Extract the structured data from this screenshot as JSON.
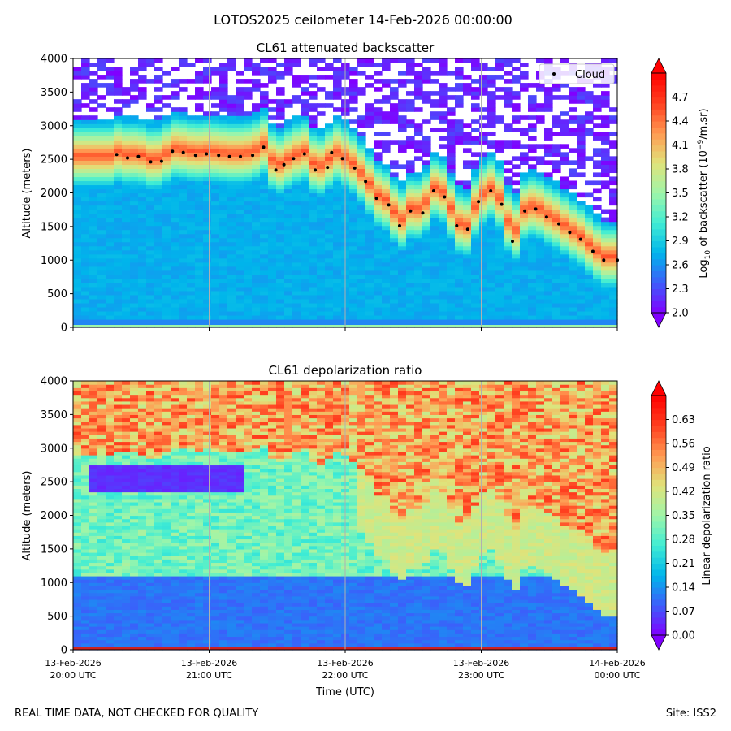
{
  "figure": {
    "suptitle": "LOTOS2025 ceilometer 14-Feb-2026 00:00:00",
    "footer_left": "REAL TIME DATA, NOT CHECKED FOR QUALITY",
    "footer_right": "Site: ISS2"
  },
  "colors": {
    "rainbow": [
      "#8000ff",
      "#3d5dfb",
      "#00b5eb",
      "#40edd4",
      "#9ef5a9",
      "#e0e37a",
      "#ff9a52",
      "#ff3f1f",
      "#ff0000"
    ],
    "cloud_marker": "#000000",
    "surface_band": "#cc2222",
    "grid": "#b0b0b0"
  },
  "chart_data": [
    {
      "type": "heatmap",
      "title": "CL61 attenuated backscatter",
      "xlabel": "",
      "ylabel": "Altitude (meters)",
      "ylim": [
        0,
        4000
      ],
      "yticks": [
        "0",
        "500",
        "1000",
        "1500",
        "2000",
        "2500",
        "3000",
        "3500",
        "4000"
      ],
      "x_hours_range": [
        0,
        4
      ],
      "grid_x_hours": [
        1,
        2,
        3
      ],
      "colorbar": {
        "label_prefix": "Log",
        "label_sub": "10",
        "label_mid": " of backscatter (10",
        "label_sup": "−9",
        "label_suffix": "/m.sr)",
        "vmin": 2.0,
        "vmax": 5.0,
        "ticks": [
          "2.0",
          "2.3",
          "2.6",
          "2.9",
          "3.2",
          "3.5",
          "3.8",
          "4.1",
          "4.4",
          "4.7"
        ],
        "tick_values": [
          2.0,
          2.3,
          2.6,
          2.9,
          3.2,
          3.5,
          3.8,
          4.1,
          4.4,
          4.7
        ]
      },
      "legend": {
        "label": "Cloud",
        "position": "top-right"
      },
      "cloud_base_hours": [
        0.32,
        0.4,
        0.48,
        0.57,
        0.65,
        0.73,
        0.81,
        0.9,
        0.98,
        1.07,
        1.15,
        1.23,
        1.32,
        1.4,
        1.49,
        1.55,
        1.62,
        1.7,
        1.78,
        1.87,
        1.9,
        1.98,
        2.07,
        2.15,
        2.23,
        2.32,
        2.4,
        2.48,
        2.57,
        2.65,
        2.73,
        2.82,
        2.9,
        2.98,
        3.07,
        3.15,
        3.23,
        3.32,
        3.4,
        3.48,
        3.57,
        3.65,
        3.73,
        3.82,
        3.9,
        4.0
      ],
      "cloud_base_m": [
        2570,
        2520,
        2540,
        2460,
        2470,
        2620,
        2600,
        2560,
        2580,
        2560,
        2540,
        2540,
        2560,
        2680,
        2340,
        2420,
        2510,
        2580,
        2340,
        2380,
        2600,
        2510,
        2370,
        2170,
        1920,
        1820,
        1510,
        1730,
        1700,
        2030,
        1940,
        1510,
        1460,
        1870,
        2030,
        1830,
        1280,
        1730,
        1760,
        1640,
        1540,
        1410,
        1310,
        1130,
        1000,
        1000
      ]
    },
    {
      "type": "heatmap",
      "title": "CL61 depolarization ratio",
      "xlabel": "Time (UTC)",
      "ylabel": "Altitude (meters)",
      "ylim": [
        0,
        4000
      ],
      "yticks": [
        "0",
        "500",
        "1000",
        "1500",
        "2000",
        "2500",
        "3000",
        "3500",
        "4000"
      ],
      "x_hours_range": [
        0,
        4
      ],
      "grid_x_hours": [
        1,
        2,
        3
      ],
      "xticks": [
        {
          "hour": 0,
          "line1": "13-Feb-2026",
          "line2": "20:00 UTC"
        },
        {
          "hour": 1,
          "line1": "13-Feb-2026",
          "line2": "21:00 UTC"
        },
        {
          "hour": 2,
          "line1": "13-Feb-2026",
          "line2": "22:00 UTC"
        },
        {
          "hour": 3,
          "line1": "13-Feb-2026",
          "line2": "23:00 UTC"
        },
        {
          "hour": 4,
          "line1": "14-Feb-2026",
          "line2": "00:00 UTC"
        }
      ],
      "colorbar": {
        "label": "Linear depolarization ratio",
        "vmin": 0.0,
        "vmax": 0.7,
        "ticks": [
          "0.00",
          "0.07",
          "0.14",
          "0.21",
          "0.28",
          "0.35",
          "0.42",
          "0.49",
          "0.56",
          "0.63"
        ],
        "tick_values": [
          0.0,
          0.07,
          0.14,
          0.21,
          0.28,
          0.35,
          0.42,
          0.49,
          0.56,
          0.63
        ]
      },
      "cloud_depol_core": {
        "base_m": 2350,
        "top_m": 2750,
        "hour_start": 0.1,
        "hour_end": 1.25,
        "value": 0.03
      },
      "near_surface_value": 0.09,
      "upper_noise_value": 0.5
    }
  ]
}
